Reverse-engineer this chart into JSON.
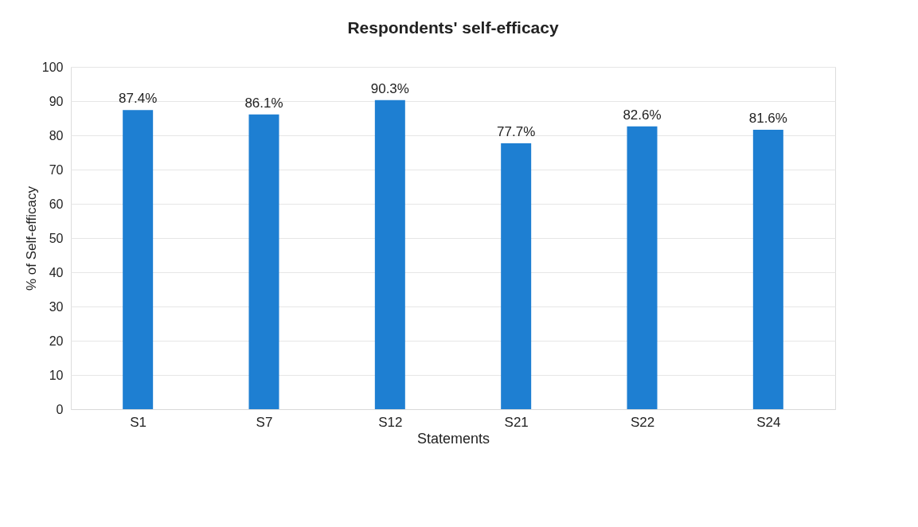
{
  "chart_data": {
    "type": "bar",
    "title": "Respondents' self-efficacy",
    "xlabel": "Statements",
    "ylabel": "% of Self-efficacy",
    "categories": [
      "S1",
      "S7",
      "S12",
      "S21",
      "S22",
      "S24"
    ],
    "values": [
      87.4,
      86.1,
      90.3,
      77.7,
      82.6,
      81.6
    ],
    "value_labels": [
      "87.4%",
      "86.1%",
      "90.3%",
      "77.7%",
      "82.6%",
      "81.6%"
    ],
    "color": "#1e7fd2",
    "ylim": [
      0,
      100
    ],
    "yticks": [
      0,
      10,
      20,
      30,
      40,
      50,
      60,
      70,
      80,
      90,
      100
    ],
    "grid": "y"
  }
}
